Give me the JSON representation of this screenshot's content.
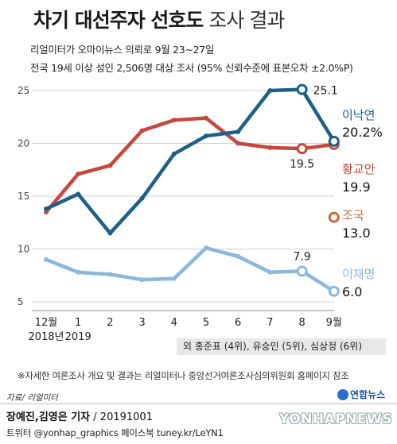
{
  "title": {
    "bold": "차기 대선주자 선호도",
    "light": "조사 결과"
  },
  "subtitle1": "리얼미터가 오마이뉴스 의뢰로 9월 23~27일",
  "subtitle2": "전국 19세 이상 성인 2,506명 대상 조사 (95% 신뢰수준에 표본오차 ±2.0%P)",
  "chart_data": {
    "type": "line",
    "x": [
      "12월",
      "1",
      "2",
      "3",
      "4",
      "5",
      "6",
      "7",
      "8",
      "9월"
    ],
    "x_sub": [
      "2018년",
      "2019",
      "",
      "",
      "",
      "",
      "",
      "",
      "",
      ""
    ],
    "ylim": [
      4,
      26
    ],
    "yticks": [
      5,
      10,
      15,
      20,
      25
    ],
    "grid": true,
    "series": [
      {
        "name": "이낙연",
        "color": "#1d5f87",
        "values": [
          13.8,
          15.2,
          11.5,
          14.8,
          19.0,
          20.7,
          21.1,
          25.0,
          25.1,
          20.2
        ],
        "labels": [
          {
            "index": 8,
            "text": "25.1"
          }
        ],
        "legend_name": "이낙연",
        "legend_value": "20.2%"
      },
      {
        "name": "황교안",
        "color": "#c8473c",
        "values": [
          13.5,
          17.1,
          17.9,
          21.2,
          22.2,
          22.4,
          20.0,
          19.6,
          19.5,
          19.9
        ],
        "labels": [
          {
            "index": 8,
            "text": "19.5"
          }
        ],
        "legend_name": "황교안",
        "legend_value": "19.9"
      },
      {
        "name": "이재명",
        "color": "#8bb7dc",
        "values": [
          9.0,
          7.8,
          7.6,
          7.1,
          7.2,
          10.1,
          9.3,
          7.8,
          7.9,
          6.0
        ],
        "labels": [
          {
            "index": 8,
            "text": "7.9"
          }
        ],
        "legend_name": "이재명",
        "legend_value": "6.0"
      },
      {
        "name": "조국",
        "color": "#c86a3c",
        "values": [
          null,
          null,
          null,
          null,
          null,
          null,
          null,
          null,
          null,
          13.0
        ],
        "labels": [],
        "legend_name": "조국",
        "legend_value": "13.0"
      }
    ]
  },
  "note_box": "외 홍준표 (4위), 유승민 (5위), 심상정 (6위)",
  "footnote": "※자세한 여론조사 개요 및 결과는 리얼미터나 중앙선거여론조사심의위원회 홈페이지 참조",
  "source": "자료/ 리얼미터",
  "logo": "연합뉴스",
  "byline": {
    "bold": "장예진,김영은 기자",
    "rest": " / 20191001"
  },
  "sns": "트위터 @yonhap_graphics  페이스북 tuney.kr/LeYN1",
  "watermark": "YONHAPNEWS"
}
